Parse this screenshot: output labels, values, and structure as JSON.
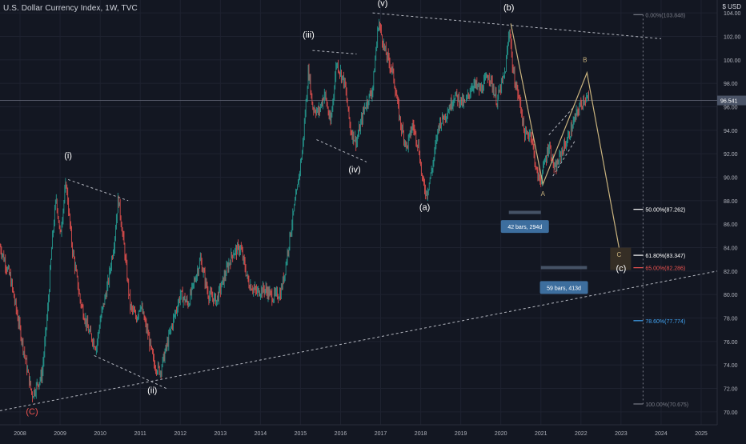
{
  "chart_data": {
    "type": "line",
    "title": "U.S. Dollar Currency Index, 1W, TVC",
    "currency": "USD",
    "header_icon": "dollar-sign-icon",
    "colors": {
      "background": "#131722",
      "up": "#26a69a",
      "down": "#ef5350",
      "wave_line": "#c9b37e",
      "dashed": "#d1d4dc",
      "price_tag": "#4a5366",
      "fib_65": "#ef5350",
      "fib_786": "#42a5f5",
      "measure_box": "#3d6e9e"
    },
    "xlim": [
      2007.5,
      2025.4
    ],
    "ylim": [
      68.9,
      105.1
    ],
    "x_ticks": [
      "2008",
      "2009",
      "2010",
      "2011",
      "2012",
      "2013",
      "2014",
      "2015",
      "2016",
      "2017",
      "2018",
      "2019",
      "2020",
      "2021",
      "2022",
      "2023",
      "2024",
      "2025"
    ],
    "y_ticks": [
      "70.00",
      "72.00",
      "74.00",
      "76.00",
      "78.00",
      "80.00",
      "82.00",
      "84.00",
      "86.00",
      "88.00",
      "90.00",
      "92.00",
      "94.00",
      "96.00",
      "98.00",
      "100.00",
      "102.00",
      "104.00"
    ],
    "current_price": {
      "value": 96.541,
      "label": "96.541"
    },
    "price_path": [
      [
        2007.5,
        84.1
      ],
      [
        2007.75,
        81.5
      ],
      [
        2008.0,
        77.0
      ],
      [
        2008.15,
        74.2
      ],
      [
        2008.3,
        71.4
      ],
      [
        2008.45,
        72.5
      ],
      [
        2008.55,
        73.2
      ],
      [
        2008.7,
        79.0
      ],
      [
        2008.8,
        84.5
      ],
      [
        2008.9,
        88.3
      ],
      [
        2009.0,
        85.0
      ],
      [
        2009.15,
        89.6
      ],
      [
        2009.3,
        84.0
      ],
      [
        2009.5,
        79.5
      ],
      [
        2009.7,
        77.0
      ],
      [
        2009.9,
        75.5
      ],
      [
        2010.0,
        77.8
      ],
      [
        2010.2,
        81.0
      ],
      [
        2010.35,
        84.5
      ],
      [
        2010.45,
        88.3
      ],
      [
        2010.6,
        84.0
      ],
      [
        2010.75,
        79.0
      ],
      [
        2010.9,
        78.0
      ],
      [
        2011.0,
        79.2
      ],
      [
        2011.2,
        76.5
      ],
      [
        2011.35,
        74.0
      ],
      [
        2011.5,
        73.5
      ],
      [
        2011.6,
        74.8
      ],
      [
        2011.8,
        77.5
      ],
      [
        2012.0,
        80.0
      ],
      [
        2012.2,
        79.2
      ],
      [
        2012.5,
        83.0
      ],
      [
        2012.7,
        80.0
      ],
      [
        2012.9,
        79.5
      ],
      [
        2013.1,
        81.5
      ],
      [
        2013.3,
        83.5
      ],
      [
        2013.5,
        84.0
      ],
      [
        2013.7,
        81.0
      ],
      [
        2013.9,
        80.2
      ],
      [
        2014.1,
        80.5
      ],
      [
        2014.3,
        79.8
      ],
      [
        2014.5,
        80.1
      ],
      [
        2014.6,
        81.8
      ],
      [
        2014.75,
        85.3
      ],
      [
        2014.9,
        88.5
      ],
      [
        2015.05,
        92.5
      ],
      [
        2015.2,
        99.2
      ],
      [
        2015.3,
        96.0
      ],
      [
        2015.45,
        95.5
      ],
      [
        2015.6,
        97.2
      ],
      [
        2015.75,
        94.5
      ],
      [
        2015.9,
        99.8
      ],
      [
        2016.1,
        98.0
      ],
      [
        2016.25,
        94.0
      ],
      [
        2016.4,
        93.0
      ],
      [
        2016.6,
        96.0
      ],
      [
        2016.8,
        97.5
      ],
      [
        2016.95,
        103.3
      ],
      [
        2017.1,
        100.8
      ],
      [
        2017.3,
        99.0
      ],
      [
        2017.5,
        94.5
      ],
      [
        2017.65,
        92.5
      ],
      [
        2017.8,
        94.5
      ],
      [
        2017.95,
        92.6
      ],
      [
        2018.05,
        89.5
      ],
      [
        2018.15,
        88.6
      ],
      [
        2018.3,
        91.0
      ],
      [
        2018.45,
        94.5
      ],
      [
        2018.65,
        95.5
      ],
      [
        2018.85,
        97.0
      ],
      [
        2019.1,
        96.2
      ],
      [
        2019.3,
        98.0
      ],
      [
        2019.5,
        97.4
      ],
      [
        2019.7,
        98.8
      ],
      [
        2019.9,
        96.5
      ],
      [
        2020.1,
        98.8
      ],
      [
        2020.22,
        102.8
      ],
      [
        2020.3,
        99.0
      ],
      [
        2020.5,
        96.0
      ],
      [
        2020.6,
        93.5
      ],
      [
        2020.75,
        93.8
      ],
      [
        2020.9,
        90.2
      ],
      [
        2021.0,
        89.8
      ],
      [
        2021.2,
        92.8
      ],
      [
        2021.35,
        90.5
      ],
      [
        2021.5,
        92.0
      ],
      [
        2021.65,
        93.1
      ],
      [
        2021.8,
        94.5
      ],
      [
        2021.95,
        95.9
      ],
      [
        2022.0,
        96.2
      ],
      [
        2022.1,
        96.8
      ],
      [
        2022.2,
        96.5
      ]
    ],
    "wave_labels": [
      {
        "text": "(C)",
        "x": 2008.3,
        "y": 69.8,
        "color": "#ef5350"
      },
      {
        "text": "(i)",
        "x": 2009.2,
        "y": 91.6,
        "color": "#ffffff"
      },
      {
        "text": "(ii)",
        "x": 2011.3,
        "y": 71.6,
        "color": "#ffffff"
      },
      {
        "text": "(iii)",
        "x": 2015.2,
        "y": 101.9,
        "color": "#ffffff"
      },
      {
        "text": "(iv)",
        "x": 2016.35,
        "y": 90.4,
        "color": "#ffffff"
      },
      {
        "text": "(v)",
        "x": 2017.05,
        "y": 104.6,
        "color": "#ffffff"
      },
      {
        "text": "(a)",
        "x": 2018.1,
        "y": 87.2,
        "color": "#ffffff"
      },
      {
        "text": "(b)",
        "x": 2020.2,
        "y": 104.2,
        "color": "#ffffff"
      },
      {
        "text": "A",
        "x": 2021.05,
        "y": 88.4,
        "color": "#c9b37e"
      },
      {
        "text": "B",
        "x": 2022.1,
        "y": 99.8,
        "color": "#c9b37e"
      },
      {
        "text": "C",
        "x": 2022.95,
        "y": 83.2,
        "color": "#c9b37e"
      },
      {
        "text": "(c)",
        "x": 2023.0,
        "y": 82.0,
        "color": "#ffffff"
      }
    ],
    "projection": [
      [
        2020.25,
        103.1
      ],
      [
        2021.05,
        89.4
      ],
      [
        2022.15,
        98.9
      ],
      [
        2022.95,
        84.0
      ]
    ],
    "trendlines": [
      {
        "from": [
          2007.5,
          70.1
        ],
        "to": [
          2025.4,
          82.0
        ]
      },
      {
        "from": [
          2016.8,
          104.0
        ],
        "to": [
          2024.0,
          101.8
        ]
      },
      {
        "from": [
          2009.2,
          89.8
        ],
        "to": [
          2010.7,
          88.0
        ]
      },
      {
        "from": [
          2009.85,
          74.8
        ],
        "to": [
          2011.65,
          72.0
        ]
      },
      {
        "from": [
          2015.3,
          100.8
        ],
        "to": [
          2016.4,
          100.5
        ]
      },
      {
        "from": [
          2015.4,
          93.2
        ],
        "to": [
          2016.65,
          91.3
        ]
      },
      {
        "from": [
          2021.2,
          93.6
        ],
        "to": [
          2021.8,
          95.9
        ]
      },
      {
        "from": [
          2021.3,
          90.1
        ],
        "to": [
          2021.85,
          93.1
        ]
      }
    ],
    "fib_x": 2023.55,
    "fib_levels": [
      {
        "label": "0.00%(103.848)",
        "value": 103.848,
        "color": "#787b86"
      },
      {
        "label": "50.00%(87.262)",
        "value": 87.262,
        "color": "#ffffff"
      },
      {
        "label": "61.80%(83.347)",
        "value": 83.347,
        "color": "#ffffff"
      },
      {
        "label": "65.00%(82.286)",
        "value": 82.286,
        "color": "#ef5350"
      },
      {
        "label": "78.60%(77.774)",
        "value": 77.774,
        "color": "#42a5f5"
      },
      {
        "label": "100.00%(70.675)",
        "value": 70.675,
        "color": "#787b86"
      }
    ],
    "measures": [
      {
        "label": "42 bars, 294d",
        "x1": 2020.2,
        "x2": 2021.0,
        "y": 87.0,
        "box_y": 85.8
      },
      {
        "label": "59 bars, 413d",
        "x1": 2021.0,
        "x2": 2022.15,
        "y": 82.3,
        "box_y": 80.6
      }
    ]
  }
}
